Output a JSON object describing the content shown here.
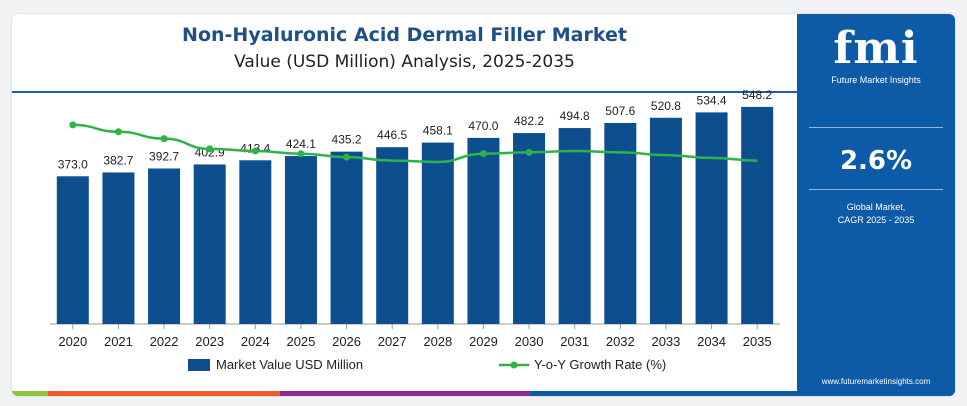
{
  "header": {
    "title": "Non-Hyaluronic Acid Dermal Filler Market",
    "subtitle": "Value (USD Million) Analysis, 2025-2035"
  },
  "chart_data": {
    "type": "bar",
    "title": "Non-Hyaluronic Acid Dermal Filler Market",
    "subtitle": "Value (USD Million) Analysis, 2025-2035",
    "categories": [
      "2020",
      "2021",
      "2022",
      "2023",
      "2024",
      "2025",
      "2026",
      "2027",
      "2028",
      "2029",
      "2030",
      "2031",
      "2032",
      "2033",
      "2034",
      "2035"
    ],
    "series": [
      {
        "name": "Market Value USD Million",
        "type": "bar",
        "color": "#0d4e8e",
        "values": [
          373.0,
          382.7,
          392.7,
          402.9,
          413.4,
          424.1,
          435.2,
          446.5,
          458.1,
          470.0,
          482.2,
          494.8,
          507.6,
          520.8,
          534.4,
          548.2
        ],
        "labels": [
          "373.0",
          "382.7",
          "392.7",
          "402.9",
          "413.4",
          "424.1",
          "435.2",
          "446.5",
          "458.1",
          "470.0",
          "482.2",
          "494.8",
          "507.6",
          "520.8",
          "534.4",
          "548.2"
        ]
      },
      {
        "name": "Y-o-Y Growth Rate (%)",
        "type": "line",
        "color": "#2db34a",
        "values": [
          2.9,
          2.8,
          2.7,
          2.55,
          2.52,
          2.48,
          2.43,
          2.38,
          2.36,
          2.48,
          2.5,
          2.52,
          2.5,
          2.46,
          2.42,
          2.38
        ]
      }
    ],
    "bar_axis": [
      0,
      600
    ],
    "line_axis": [
      0,
      3.3
    ],
    "grid": false,
    "legend_position": "bottom"
  },
  "sidebar": {
    "logo_text": "fmi",
    "logo_subtitle": "Future Market Insights",
    "cagr_value": "2.6%",
    "cagr_label_line1": "Global Market,",
    "cagr_label_line2": "CAGR 2025 - 2035",
    "website": "www.futuremarketinsights.com",
    "background": "#0d5aa7"
  },
  "footer_colors": [
    "#8dc63f",
    "#f15a29",
    "#92278f",
    "#0d5aa7"
  ]
}
